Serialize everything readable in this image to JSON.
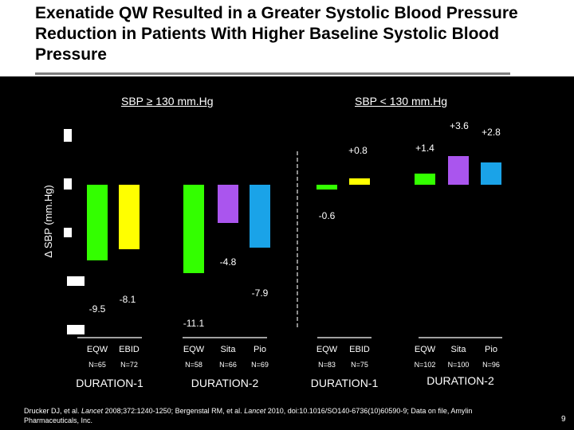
{
  "slide": {
    "title": "Exenatide QW Resulted in a Greater Systolic Blood Pressure Reduction in Patients With Higher Baseline Systolic Blood Pressure",
    "header_left": "SBP ≥ 130 mm.Hg",
    "header_right": "SBP < 130 mm.Hg",
    "footer_part1": "Drucker DJ, et al. ",
    "footer_journal1": "Lancet",
    "footer_part2": " 2008;372:1240-1250; Bergenstal RM, et al. ",
    "footer_journal2": "Lancet",
    "footer_part3": " 2010, doi:10.1016/SO140-6736(10)60590-9; Data on file, Amylin Pharmaceuticals, Inc.",
    "page_number": "9"
  },
  "colors": {
    "EQW": "#33ff00",
    "EBID": "#ffff00",
    "Sita": "#aa55ee",
    "Pio": "#1aa3e8"
  },
  "chart_data": {
    "type": "bar",
    "ylabel": "Δ SBP (mm.Hg)",
    "ylim": [
      -12,
      4
    ],
    "groups": [
      {
        "name": "DURATION-1",
        "subgroup": "SBP ≥ 130 mm.Hg",
        "bars": [
          {
            "label": "EQW",
            "n": "N=65",
            "value": -9.5,
            "value_label": "-9.5",
            "color_key": "EQW"
          },
          {
            "label": "EBID",
            "n": "N=72",
            "value": -8.1,
            "value_label": "-8.1",
            "color_key": "EBID"
          }
        ]
      },
      {
        "name": "DURATION-2",
        "subgroup": "SBP ≥ 130 mm.Hg",
        "bars": [
          {
            "label": "EQW",
            "n": "N=58",
            "value": -11.1,
            "value_label": "-11.1",
            "color_key": "EQW"
          },
          {
            "label": "Sita",
            "n": "N=66",
            "value": -4.8,
            "value_label": "-4.8",
            "color_key": "Sita"
          },
          {
            "label": "Pio",
            "n": "N=69",
            "value": -7.9,
            "value_label": "-7.9",
            "color_key": "Pio"
          }
        ]
      },
      {
        "name": "DURATION-1",
        "subgroup": "SBP < 130 mm.Hg",
        "bars": [
          {
            "label": "EQW",
            "n": "N=83",
            "value": -0.6,
            "value_label": "-0.6",
            "color_key": "EQW"
          },
          {
            "label": "EBID",
            "n": "N=75",
            "value": 0.8,
            "value_label": "+0.8",
            "color_key": "EBID"
          }
        ]
      },
      {
        "name": "DURATION-2",
        "subgroup": "SBP < 130 mm.Hg",
        "bars": [
          {
            "label": "EQW",
            "n": "N=102",
            "value": 1.4,
            "value_label": "+1.4",
            "color_key": "EQW"
          },
          {
            "label": "Sita",
            "n": "N=100",
            "value": 3.6,
            "value_label": "+3.6",
            "color_key": "Sita"
          },
          {
            "label": "Pio",
            "n": "N=96",
            "value": 2.8,
            "value_label": "+2.8",
            "color_key": "Pio"
          }
        ]
      }
    ]
  }
}
